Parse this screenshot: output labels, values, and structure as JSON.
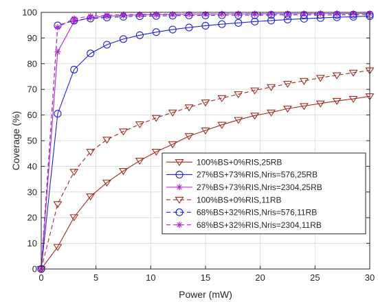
{
  "chart_data": {
    "type": "line",
    "xlabel": "Power (mW)",
    "ylabel": "Coverage (%)",
    "xlim": [
      0,
      30
    ],
    "ylim": [
      0,
      100
    ],
    "xticks": [
      0,
      5,
      10,
      15,
      20,
      25,
      30
    ],
    "yticks": [
      0,
      10,
      20,
      30,
      40,
      50,
      60,
      70,
      80,
      90,
      100
    ],
    "grid": true,
    "legend_position": "right-middle",
    "x": [
      0,
      1.5,
      3,
      4.5,
      6,
      7.5,
      9,
      10.5,
      12,
      13.5,
      15,
      16.5,
      18,
      19.5,
      21,
      22.5,
      24,
      25.5,
      27,
      28.5,
      30
    ],
    "series": [
      {
        "name": "100%BS+0%RIS,25RB",
        "color": "#a0291e",
        "marker": "triangle-down",
        "line": "solid",
        "values": [
          0,
          8.6,
          20.2,
          28.3,
          33.7,
          38.2,
          42.2,
          45.7,
          48.6,
          51.8,
          54.0,
          56.2,
          58.1,
          59.8,
          61.0,
          62.5,
          63.5,
          64.5,
          65.5,
          66.3,
          67.3
        ]
      },
      {
        "name": "27%BS+73%RIS,Nris=576,25RB",
        "color": "#1f1fdc",
        "marker": "circle",
        "line": "solid",
        "values": [
          0,
          60.5,
          77.7,
          84.0,
          87.4,
          89.6,
          91.1,
          92.3,
          93.3,
          94.1,
          94.8,
          95.4,
          95.9,
          96.4,
          96.8,
          97.2,
          97.5,
          97.8,
          98.1,
          98.3,
          98.5
        ]
      },
      {
        "name": "27%BS+73%RIS,Nris=2304,25RB",
        "color": "#b61fd9",
        "marker": "star",
        "line": "solid",
        "values": [
          0,
          84.6,
          96.4,
          97.9,
          98.5,
          98.8,
          99.0,
          99.1,
          99.2,
          99.3,
          99.3,
          99.4,
          99.4,
          99.4,
          99.5,
          99.5,
          99.5,
          99.5,
          99.6,
          99.6,
          99.6
        ]
      },
      {
        "name": "100%BS+0%RIS,11RB",
        "color": "#a0291e",
        "marker": "triangle-down",
        "line": "dashed",
        "values": [
          0,
          25.3,
          37.9,
          45.7,
          50.4,
          53.6,
          56.4,
          58.9,
          61.0,
          63.0,
          64.9,
          66.6,
          68.1,
          69.6,
          70.9,
          72.2,
          73.3,
          74.5,
          75.5,
          76.5,
          77.4
        ]
      },
      {
        "name": "68%BS+32%RIS,Nris=576,11RB",
        "color": "#1f1fdc",
        "marker": "circle",
        "line": "dashed",
        "values": [
          0,
          94.9,
          96.8,
          97.6,
          98.0,
          98.3,
          98.5,
          98.6,
          98.7,
          98.8,
          98.8,
          98.9,
          98.9,
          98.9,
          99.0,
          99.0,
          99.0,
          99.0,
          99.0,
          99.1,
          99.1
        ]
      },
      {
        "name": "68%BS+32%RIS,Nris=2304,11RB",
        "color": "#b61fd9",
        "marker": "star",
        "line": "dashed",
        "values": [
          0,
          94.2,
          97.6,
          98.5,
          98.9,
          99.1,
          99.2,
          99.3,
          99.3,
          99.4,
          99.4,
          99.4,
          99.5,
          99.5,
          99.5,
          99.5,
          99.5,
          99.6,
          99.6,
          99.6,
          99.6
        ]
      }
    ]
  }
}
